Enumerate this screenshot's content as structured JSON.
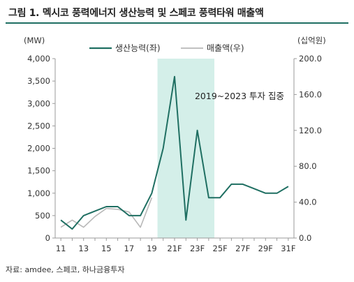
{
  "header": {
    "title": "그림 1. 멕시코 풍력에너지 생산능력 및 스페코 풍력타워 매출액"
  },
  "footer": {
    "source": "자료: amdee, 스페코, 하나금융투자"
  },
  "colors": {
    "series1": "#1f6f62",
    "series2": "#b8b8b8",
    "highlight": "#d4efe9",
    "rule": "#1f6f62"
  },
  "chart_data": {
    "type": "line",
    "x": [
      "11",
      "12",
      "13",
      "14",
      "15",
      "16",
      "17",
      "18",
      "19",
      "20",
      "21F",
      "22F",
      "23F",
      "24F",
      "25F",
      "26F",
      "27F",
      "28F",
      "29F",
      "30F",
      "31F"
    ],
    "x_tick_labels": [
      "11",
      "13",
      "15",
      "17",
      "19",
      "21F",
      "23F",
      "25F",
      "27F",
      "29F",
      "31F"
    ],
    "y_left": {
      "label": "(MW)",
      "ticks": [
        "0",
        "500",
        "1,000",
        "1,500",
        "2,000",
        "2,500",
        "3,000",
        "3,500",
        "4,000"
      ],
      "range": [
        0,
        4000
      ]
    },
    "y_right": {
      "label": "(십억원)",
      "ticks": [
        "0.0",
        "40.0",
        "80.0",
        "120.0",
        "160.0",
        "200.0"
      ],
      "range": [
        0,
        200
      ]
    },
    "series": [
      {
        "name": "생산능력(좌)",
        "axis": "left",
        "values": [
          400,
          200,
          500,
          600,
          700,
          700,
          500,
          500,
          1000,
          2000,
          3600,
          400,
          2400,
          900,
          900,
          1200,
          1200,
          1100,
          1000,
          1000,
          1150
        ]
      },
      {
        "name": "매출액(우)",
        "axis": "right",
        "values": [
          12,
          20,
          12,
          24,
          33,
          32,
          29,
          12,
          45,
          null,
          null,
          null,
          null,
          null,
          null,
          null,
          null,
          null,
          null,
          null,
          null
        ]
      }
    ],
    "highlight": {
      "from": "20",
      "to": "25F",
      "label": "2019~2023 투자 집중"
    },
    "legend_position": "top"
  }
}
